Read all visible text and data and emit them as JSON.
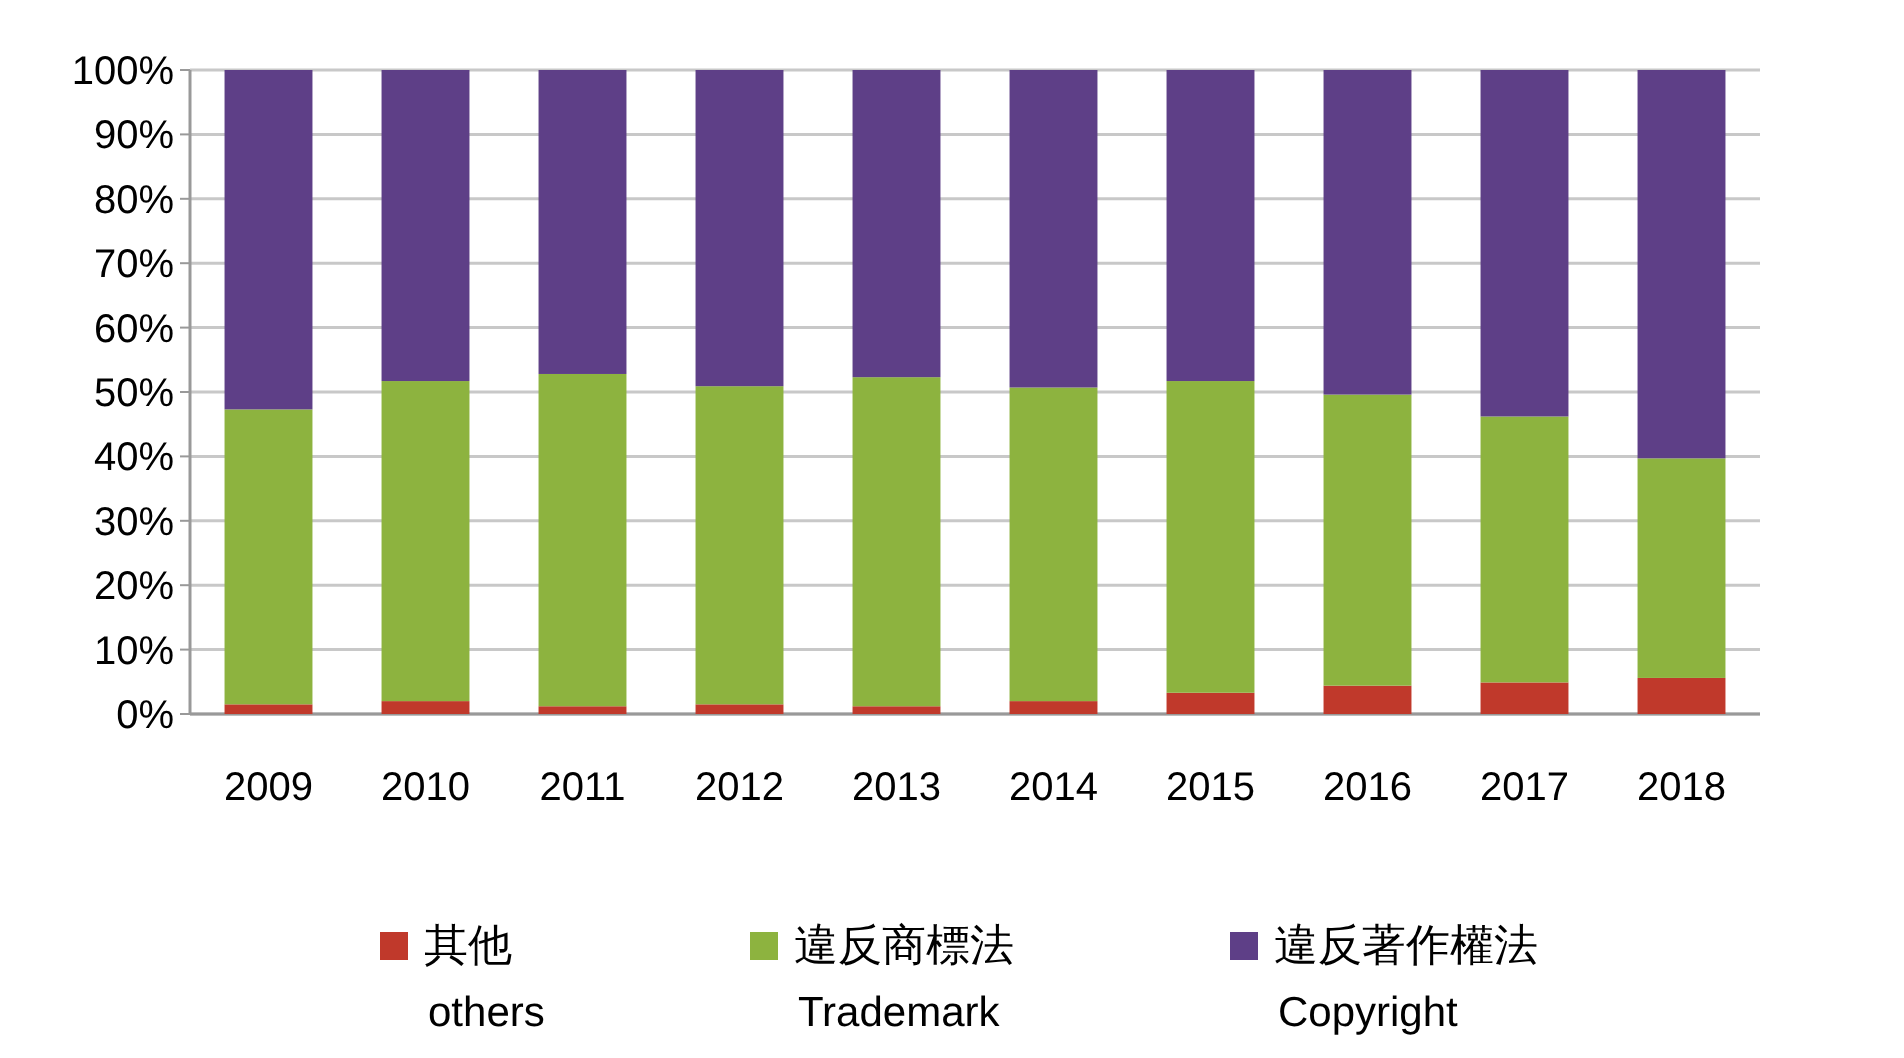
{
  "chart_data": {
    "type": "bar",
    "stacked": true,
    "categories": [
      "2009",
      "2010",
      "2011",
      "2012",
      "2013",
      "2014",
      "2015",
      "2016",
      "2017",
      "2018"
    ],
    "series": [
      {
        "name": "其他\nothers",
        "color": "#c0392b",
        "values": [
          1.5,
          2,
          1.2,
          1.5,
          1.2,
          2,
          3.3,
          4.4,
          4.9,
          5.6
        ]
      },
      {
        "name": "違反商標法\nTrademark",
        "color": "#8db33f",
        "values": [
          45.8,
          49.7,
          51.6,
          49.4,
          51.1,
          48.7,
          48.4,
          45.2,
          41.3,
          34.1
        ]
      },
      {
        "name": "違反著作權法\nCopyright",
        "color": "#5e3f87",
        "values": [
          52.7,
          48.3,
          47.2,
          49.1,
          47.7,
          49.3,
          48.3,
          50.4,
          53.8,
          60.3
        ]
      }
    ],
    "ylim": [
      0,
      100
    ],
    "yticks": [
      {
        "value": 0,
        "label": "0%"
      },
      {
        "value": 10,
        "label": "10%"
      },
      {
        "value": 20,
        "label": "20%"
      },
      {
        "value": 30,
        "label": "30%"
      },
      {
        "value": 40,
        "label": "40%"
      },
      {
        "value": 50,
        "label": "50%"
      },
      {
        "value": 60,
        "label": "60%"
      },
      {
        "value": 70,
        "label": "70%"
      },
      {
        "value": 80,
        "label": "80%"
      },
      {
        "value": 90,
        "label": "90%"
      },
      {
        "value": 100,
        "label": "100%"
      }
    ],
    "grid": "y",
    "legend": "bottom"
  }
}
